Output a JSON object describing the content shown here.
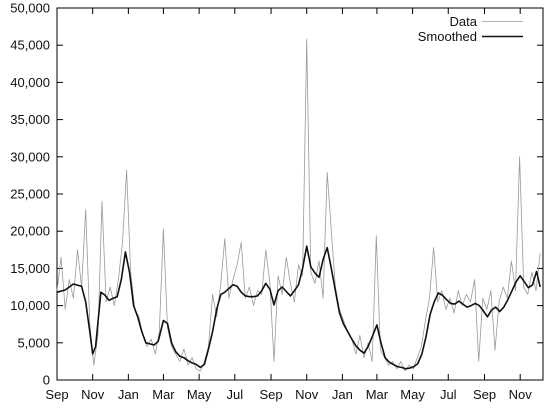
{
  "chart_data": {
    "type": "line",
    "title": "",
    "xlabel": "",
    "ylabel": "",
    "ylim": [
      0,
      50000
    ],
    "yticks": [
      0,
      5000,
      10000,
      15000,
      20000,
      25000,
      30000,
      35000,
      40000,
      45000,
      50000
    ],
    "ytick_labels": [
      "0",
      "5,000",
      "10,000",
      "15,000",
      "20,000",
      "25,000",
      "30,000",
      "35,000",
      "40,000",
      "45,000",
      "50,000"
    ],
    "xticks": [
      "2007-09-01",
      "2007-11-01",
      "2008-01-01",
      "2008-03-01",
      "2008-05-01",
      "2008-07-01",
      "2008-09-01",
      "2008-11-01",
      "2009-01-01",
      "2009-03-01",
      "2009-05-01",
      "2009-07-01",
      "2009-09-01",
      "2009-11-01"
    ],
    "xtick_labels": [
      "Sep",
      "Nov",
      "Jan",
      "Mar",
      "May",
      "Jul",
      "Sep",
      "Nov",
      "Jan",
      "Mar",
      "May",
      "Jul",
      "Sep",
      "Nov"
    ],
    "xlim": [
      "2007-09-01",
      "2009-12-10"
    ],
    "grid": false,
    "legend": "top-right",
    "series": [
      {
        "name": "Data",
        "color": "#9a9a9a",
        "style": "thin",
        "points": [
          [
            "2007-09-01",
            12000
          ],
          [
            "2007-09-08",
            16500
          ],
          [
            "2007-09-15",
            9500
          ],
          [
            "2007-09-22",
            13500
          ],
          [
            "2007-09-29",
            11000
          ],
          [
            "2007-10-06",
            17500
          ],
          [
            "2007-10-13",
            12500
          ],
          [
            "2007-10-20",
            22900
          ],
          [
            "2007-10-27",
            7500
          ],
          [
            "2007-11-03",
            2000
          ],
          [
            "2007-11-10",
            6000
          ],
          [
            "2007-11-17",
            24000
          ],
          [
            "2007-11-24",
            10500
          ],
          [
            "2007-12-01",
            12500
          ],
          [
            "2007-12-08",
            10000
          ],
          [
            "2007-12-15",
            13500
          ],
          [
            "2007-12-22",
            18500
          ],
          [
            "2007-12-29",
            28200
          ],
          [
            "2008-01-05",
            14500
          ],
          [
            "2008-01-12",
            9500
          ],
          [
            "2008-01-19",
            8500
          ],
          [
            "2008-01-26",
            6000
          ],
          [
            "2008-02-02",
            4500
          ],
          [
            "2008-02-09",
            5500
          ],
          [
            "2008-02-16",
            3500
          ],
          [
            "2008-02-23",
            6500
          ],
          [
            "2008-03-01",
            20300
          ],
          [
            "2008-03-08",
            7000
          ],
          [
            "2008-03-15",
            4500
          ],
          [
            "2008-03-22",
            3500
          ],
          [
            "2008-03-29",
            2500
          ],
          [
            "2008-04-05",
            4200
          ],
          [
            "2008-04-12",
            2000
          ],
          [
            "2008-04-19",
            3000
          ],
          [
            "2008-04-26",
            1500
          ],
          [
            "2008-05-03",
            1200
          ],
          [
            "2008-05-10",
            2500
          ],
          [
            "2008-05-17",
            4500
          ],
          [
            "2008-05-24",
            11500
          ],
          [
            "2008-05-31",
            8500
          ],
          [
            "2008-06-07",
            13000
          ],
          [
            "2008-06-14",
            19000
          ],
          [
            "2008-06-21",
            11000
          ],
          [
            "2008-06-28",
            13500
          ],
          [
            "2008-07-05",
            15500
          ],
          [
            "2008-07-12",
            18500
          ],
          [
            "2008-07-19",
            11000
          ],
          [
            "2008-07-26",
            12500
          ],
          [
            "2008-08-02",
            10000
          ],
          [
            "2008-08-09",
            12000
          ],
          [
            "2008-08-16",
            11500
          ],
          [
            "2008-08-23",
            17500
          ],
          [
            "2008-08-30",
            13000
          ],
          [
            "2008-09-06",
            2500
          ],
          [
            "2008-09-13",
            14000
          ],
          [
            "2008-09-20",
            11500
          ],
          [
            "2008-09-27",
            16500
          ],
          [
            "2008-10-04",
            13000
          ],
          [
            "2008-10-11",
            10500
          ],
          [
            "2008-10-18",
            15500
          ],
          [
            "2008-10-25",
            14000
          ],
          [
            "2008-11-01",
            45800
          ],
          [
            "2008-11-08",
            14500
          ],
          [
            "2008-11-15",
            13000
          ],
          [
            "2008-11-22",
            16000
          ],
          [
            "2008-11-29",
            11000
          ],
          [
            "2008-12-06",
            27900
          ],
          [
            "2008-12-13",
            20000
          ],
          [
            "2008-12-20",
            12500
          ],
          [
            "2008-12-27",
            9500
          ],
          [
            "2009-01-03",
            8000
          ],
          [
            "2009-01-10",
            6500
          ],
          [
            "2009-01-17",
            5500
          ],
          [
            "2009-01-24",
            3500
          ],
          [
            "2009-01-31",
            6000
          ],
          [
            "2009-02-07",
            3000
          ],
          [
            "2009-02-14",
            5000
          ],
          [
            "2009-02-21",
            2500
          ],
          [
            "2009-02-28",
            19400
          ],
          [
            "2009-03-07",
            4000
          ],
          [
            "2009-03-14",
            3000
          ],
          [
            "2009-03-21",
            2000
          ],
          [
            "2009-03-28",
            2500
          ],
          [
            "2009-04-04",
            1500
          ],
          [
            "2009-04-11",
            2500
          ],
          [
            "2009-04-18",
            1200
          ],
          [
            "2009-04-25",
            2000
          ],
          [
            "2009-05-02",
            1500
          ],
          [
            "2009-05-09",
            3000
          ],
          [
            "2009-05-16",
            4500
          ],
          [
            "2009-05-23",
            8000
          ],
          [
            "2009-05-30",
            11000
          ],
          [
            "2009-06-06",
            17800
          ],
          [
            "2009-06-13",
            10500
          ],
          [
            "2009-06-20",
            12000
          ],
          [
            "2009-06-27",
            9500
          ],
          [
            "2009-07-04",
            11000
          ],
          [
            "2009-07-11",
            9000
          ],
          [
            "2009-07-18",
            12000
          ],
          [
            "2009-07-25",
            10000
          ],
          [
            "2009-08-01",
            11500
          ],
          [
            "2009-08-08",
            10500
          ],
          [
            "2009-08-15",
            13500
          ],
          [
            "2009-08-22",
            2500
          ],
          [
            "2009-08-29",
            11000
          ],
          [
            "2009-09-05",
            9500
          ],
          [
            "2009-09-12",
            12000
          ],
          [
            "2009-09-19",
            4000
          ],
          [
            "2009-09-26",
            10500
          ],
          [
            "2009-10-03",
            12500
          ],
          [
            "2009-10-10",
            11000
          ],
          [
            "2009-10-17",
            16000
          ],
          [
            "2009-10-24",
            12000
          ],
          [
            "2009-10-31",
            30000
          ],
          [
            "2009-11-07",
            12500
          ],
          [
            "2009-11-14",
            11500
          ],
          [
            "2009-11-21",
            14500
          ],
          [
            "2009-11-28",
            12000
          ],
          [
            "2009-12-05",
            17000
          ]
        ]
      },
      {
        "name": "Smoothed",
        "color": "#111111",
        "style": "thick",
        "points": [
          [
            "2007-09-01",
            11800
          ],
          [
            "2007-09-15",
            12100
          ],
          [
            "2007-09-29",
            12900
          ],
          [
            "2007-10-13",
            12600
          ],
          [
            "2007-10-20",
            10500
          ],
          [
            "2007-10-27",
            6500
          ],
          [
            "2007-11-01",
            3500
          ],
          [
            "2007-11-06",
            4500
          ],
          [
            "2007-11-15",
            11800
          ],
          [
            "2007-11-22",
            11400
          ],
          [
            "2007-11-29",
            10700
          ],
          [
            "2007-12-06",
            11000
          ],
          [
            "2007-12-13",
            11200
          ],
          [
            "2007-12-20",
            13500
          ],
          [
            "2007-12-27",
            17200
          ],
          [
            "2008-01-03",
            14500
          ],
          [
            "2008-01-10",
            10000
          ],
          [
            "2008-01-17",
            8500
          ],
          [
            "2008-01-24",
            6500
          ],
          [
            "2008-01-31",
            5000
          ],
          [
            "2008-02-14",
            4700
          ],
          [
            "2008-02-21",
            5200
          ],
          [
            "2008-03-01",
            8000
          ],
          [
            "2008-03-08",
            7600
          ],
          [
            "2008-03-15",
            5000
          ],
          [
            "2008-03-22",
            3800
          ],
          [
            "2008-03-29",
            3200
          ],
          [
            "2008-04-05",
            3000
          ],
          [
            "2008-04-12",
            2600
          ],
          [
            "2008-04-19",
            2300
          ],
          [
            "2008-04-26",
            2100
          ],
          [
            "2008-05-03",
            1700
          ],
          [
            "2008-05-10",
            2100
          ],
          [
            "2008-05-17",
            4200
          ],
          [
            "2008-05-24",
            6500
          ],
          [
            "2008-05-31",
            9500
          ],
          [
            "2008-06-07",
            11500
          ],
          [
            "2008-06-14",
            11800
          ],
          [
            "2008-06-21",
            12300
          ],
          [
            "2008-06-28",
            12800
          ],
          [
            "2008-07-05",
            12600
          ],
          [
            "2008-07-12",
            11800
          ],
          [
            "2008-07-19",
            11300
          ],
          [
            "2008-07-26",
            11200
          ],
          [
            "2008-08-02",
            11200
          ],
          [
            "2008-08-09",
            11300
          ],
          [
            "2008-08-16",
            12000
          ],
          [
            "2008-08-23",
            13000
          ],
          [
            "2008-08-30",
            12200
          ],
          [
            "2008-09-06",
            10100
          ],
          [
            "2008-09-13",
            12000
          ],
          [
            "2008-09-20",
            12500
          ],
          [
            "2008-09-27",
            11900
          ],
          [
            "2008-10-04",
            11300
          ],
          [
            "2008-10-11",
            12000
          ],
          [
            "2008-10-18",
            12800
          ],
          [
            "2008-10-25",
            15000
          ],
          [
            "2008-11-01",
            18000
          ],
          [
            "2008-11-08",
            15200
          ],
          [
            "2008-11-15",
            14400
          ],
          [
            "2008-11-22",
            13800
          ],
          [
            "2008-11-29",
            16200
          ],
          [
            "2008-12-06",
            17800
          ],
          [
            "2008-12-13",
            15000
          ],
          [
            "2008-12-20",
            12000
          ],
          [
            "2008-12-27",
            9000
          ],
          [
            "2009-01-03",
            7500
          ],
          [
            "2009-01-10",
            6500
          ],
          [
            "2009-01-17",
            5500
          ],
          [
            "2009-01-24",
            4600
          ],
          [
            "2009-01-31",
            4000
          ],
          [
            "2009-02-07",
            3600
          ],
          [
            "2009-02-14",
            4500
          ],
          [
            "2009-02-21",
            5800
          ],
          [
            "2009-03-01",
            7400
          ],
          [
            "2009-03-08",
            5000
          ],
          [
            "2009-03-15",
            3000
          ],
          [
            "2009-03-22",
            2400
          ],
          [
            "2009-03-29",
            2100
          ],
          [
            "2009-04-05",
            1800
          ],
          [
            "2009-04-12",
            1700
          ],
          [
            "2009-04-19",
            1500
          ],
          [
            "2009-04-26",
            1600
          ],
          [
            "2009-05-03",
            1800
          ],
          [
            "2009-05-10",
            2200
          ],
          [
            "2009-05-17",
            3500
          ],
          [
            "2009-05-24",
            5800
          ],
          [
            "2009-05-31",
            8800
          ],
          [
            "2009-06-07",
            10500
          ],
          [
            "2009-06-14",
            11700
          ],
          [
            "2009-06-21",
            11400
          ],
          [
            "2009-06-28",
            10800
          ],
          [
            "2009-07-05",
            10300
          ],
          [
            "2009-07-12",
            10200
          ],
          [
            "2009-07-19",
            10600
          ],
          [
            "2009-07-26",
            10200
          ],
          [
            "2009-08-02",
            9800
          ],
          [
            "2009-08-09",
            10000
          ],
          [
            "2009-08-16",
            10300
          ],
          [
            "2009-08-23",
            10000
          ],
          [
            "2009-08-30",
            9300
          ],
          [
            "2009-09-06",
            8500
          ],
          [
            "2009-09-13",
            9400
          ],
          [
            "2009-09-20",
            9800
          ],
          [
            "2009-09-27",
            9200
          ],
          [
            "2009-10-04",
            9800
          ],
          [
            "2009-10-11",
            10800
          ],
          [
            "2009-10-18",
            12000
          ],
          [
            "2009-10-25",
            13200
          ],
          [
            "2009-11-01",
            14000
          ],
          [
            "2009-11-08",
            13200
          ],
          [
            "2009-11-15",
            12400
          ],
          [
            "2009-11-22",
            12800
          ],
          [
            "2009-11-29",
            14600
          ],
          [
            "2009-12-05",
            12500
          ]
        ]
      }
    ]
  }
}
